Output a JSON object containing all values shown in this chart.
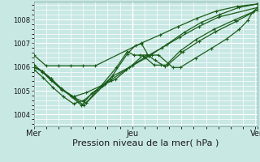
{
  "background_color": "#c8e8e4",
  "plot_bg_color": "#c8e8e4",
  "grid_color": "#ffffff",
  "line_color": "#1a5c1a",
  "marker": "+",
  "marker_size": 3,
  "marker_lw": 0.8,
  "line_width": 0.9,
  "xlabel": "Pression niveau de la mer( hPa )",
  "xlabel_fontsize": 8,
  "yticks": [
    1004,
    1005,
    1006,
    1007,
    1008
  ],
  "ylim": [
    1003.5,
    1008.75
  ],
  "xlim": [
    0,
    1.0
  ],
  "xtick_labels": [
    "Mer",
    "Jeu",
    "Ven"
  ],
  "xtick_positions": [
    0.0,
    0.44,
    1.0
  ],
  "ytick_fontsize": 6,
  "xtick_fontsize": 7,
  "series": [
    [
      1006.5,
      1006.05,
      1006.05,
      1006.05,
      1006.05,
      1006.05,
      1007.0,
      1007.35,
      1007.7,
      1008.05,
      1008.35,
      1008.55,
      1008.65
    ],
    [
      1006.1,
      1005.8,
      1005.45,
      1005.1,
      1004.75,
      1004.38,
      1004.9,
      1005.2,
      1005.6,
      1006.05,
      1006.45,
      1006.95,
      1007.45,
      1007.88,
      1008.2,
      1008.5,
      1008.65
    ],
    [
      1005.9,
      1005.55,
      1005.15,
      1004.75,
      1004.45,
      1004.6,
      1005.05,
      1005.45,
      1005.9,
      1006.4,
      1006.8,
      1007.25,
      1007.7,
      1008.1,
      1008.5
    ],
    [
      1006.0,
      1005.8,
      1005.45,
      1005.05,
      1004.72,
      1004.38,
      1005.25,
      1005.98,
      1006.65,
      1006.5,
      1006.5,
      1006.5,
      1006.5,
      1006.5,
      1005.98,
      1005.98,
      1006.38,
      1006.78,
      1007.18,
      1007.58,
      1007.95,
      1008.3,
      1008.5
    ],
    [
      1006.0,
      1005.82,
      1005.52,
      1005.08,
      1004.72,
      1004.48,
      1005.5,
      1006.55,
      1006.9,
      1006.98,
      1006.48,
      1006.28,
      1006.02,
      1006.68,
      1007.15,
      1007.58,
      1007.98,
      1008.4
    ],
    [
      1006.0,
      1005.82,
      1005.52,
      1005.08,
      1004.75,
      1004.92,
      1005.28,
      1005.48,
      1005.98,
      1006.48,
      1006.08,
      1006.08,
      1006.08,
      1006.65,
      1007.08,
      1007.48,
      1007.92,
      1008.4
    ]
  ],
  "series_x": [
    [
      0,
      0.055,
      0.11,
      0.165,
      0.22,
      0.275,
      0.48,
      0.565,
      0.645,
      0.73,
      0.815,
      0.91,
      1.0
    ],
    [
      0,
      0.038,
      0.076,
      0.122,
      0.168,
      0.214,
      0.26,
      0.305,
      0.35,
      0.44,
      0.515,
      0.595,
      0.672,
      0.75,
      0.83,
      0.916,
      1.0
    ],
    [
      0,
      0.042,
      0.084,
      0.132,
      0.178,
      0.224,
      0.285,
      0.346,
      0.413,
      0.495,
      0.572,
      0.652,
      0.738,
      0.826,
      1.0
    ],
    [
      0,
      0.038,
      0.076,
      0.124,
      0.178,
      0.224,
      0.305,
      0.37,
      0.418,
      0.448,
      0.474,
      0.502,
      0.528,
      0.558,
      0.622,
      0.655,
      0.724,
      0.794,
      0.862,
      0.918,
      0.956,
      0.978,
      1.0
    ],
    [
      0,
      0.038,
      0.076,
      0.124,
      0.178,
      0.234,
      0.342,
      0.418,
      0.454,
      0.482,
      0.512,
      0.542,
      0.585,
      0.655,
      0.725,
      0.805,
      0.898,
      1.0
    ],
    [
      0,
      0.038,
      0.076,
      0.124,
      0.178,
      0.234,
      0.318,
      0.365,
      0.428,
      0.488,
      0.538,
      0.568,
      0.598,
      0.668,
      0.738,
      0.812,
      0.906,
      1.0
    ]
  ]
}
